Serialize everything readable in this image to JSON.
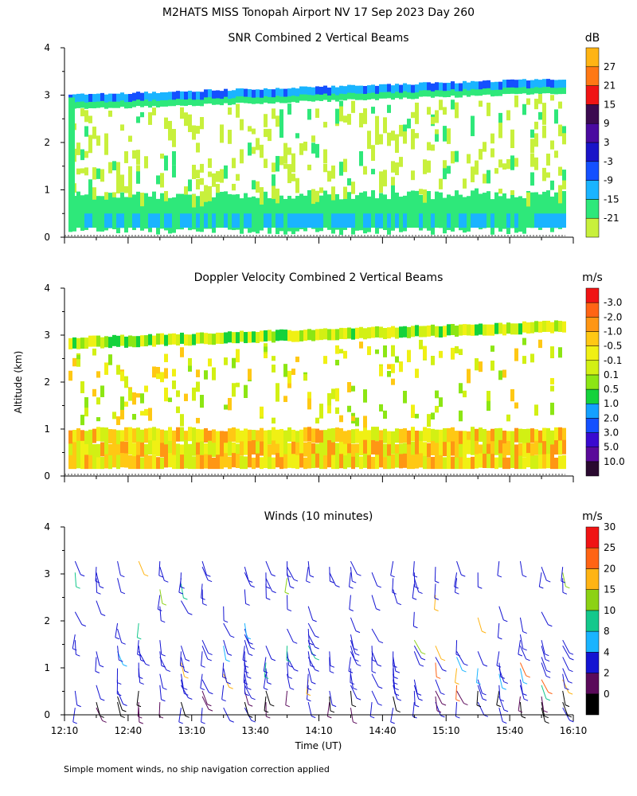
{
  "figure": {
    "title": "M2HATS MISS Tonopah Airport NV  17 Sep 2023 Day 260",
    "footnote": "Simple moment winds, no ship navigation correction applied",
    "ylabel": "Altitude (km)",
    "xlabel": "Time (UT)"
  },
  "chart_data": [
    {
      "type": "heatmap",
      "title": "SNR Combined 2 Vertical Beams",
      "ylim": [
        0,
        4
      ],
      "yticks": [
        "0",
        "1",
        "2",
        "3",
        "4"
      ],
      "xlim": [
        "12:10",
        "16:10"
      ],
      "colorbar": {
        "unit": "dB",
        "labels": [
          "-21",
          "-15",
          "-9",
          "-3",
          "3",
          "9",
          "15",
          "21",
          "27"
        ],
        "colors": [
          "#c8f03c",
          "#2ee87a",
          "#1ab4ff",
          "#1450ff",
          "#1a14c8",
          "#4a0aa0",
          "#3c0a50",
          "#f01414",
          "#ff7814",
          "#ffb414"
        ]
      },
      "features": {
        "echo_top_km": 3.0,
        "top_layer_peak_km": 3.4,
        "low_layer_top_km": 0.8
      }
    },
    {
      "type": "heatmap",
      "title": "Doppler Velocity Combined 2 Vertical Beams",
      "ylim": [
        0,
        4
      ],
      "yticks": [
        "0",
        "1",
        "2",
        "3",
        "4"
      ],
      "xlim": [
        "12:10",
        "16:10"
      ],
      "colorbar": {
        "unit": "m/s",
        "labels": [
          "10.0",
          "5.0",
          "3.0",
          "2.0",
          "1.0",
          "0.5",
          "0.1",
          "-0.1",
          "-0.5",
          "-1.0",
          "-2.0",
          "-3.0"
        ],
        "colors": [
          "#2a0a30",
          "#5a0a9a",
          "#3a0ad0",
          "#1450ff",
          "#14a0ff",
          "#14d23c",
          "#8ce614",
          "#d2f014",
          "#f0f014",
          "#ffc814",
          "#ff9614",
          "#ff6414",
          "#f01414"
        ]
      }
    },
    {
      "type": "scatter",
      "title": "Winds (10 minutes)",
      "ylim": [
        0,
        4
      ],
      "yticks": [
        "0",
        "1",
        "2",
        "3",
        "4"
      ],
      "x_ticks": [
        "12:10",
        "12:40",
        "13:10",
        "13:40",
        "14:10",
        "14:40",
        "15:10",
        "15:40",
        "16:10"
      ],
      "xlim": [
        "12:10",
        "16:10"
      ],
      "interval_minutes": 10,
      "colorbar": {
        "unit": "m/s",
        "labels": [
          "0",
          "2",
          "4",
          "8",
          "10",
          "15",
          "20",
          "25",
          "30"
        ],
        "colors": [
          "#000000",
          "#5a0a5a",
          "#1414d2",
          "#1ab4ff",
          "#14c88c",
          "#8cd214",
          "#ffb414",
          "#ff6414",
          "#f01414"
        ]
      }
    }
  ]
}
